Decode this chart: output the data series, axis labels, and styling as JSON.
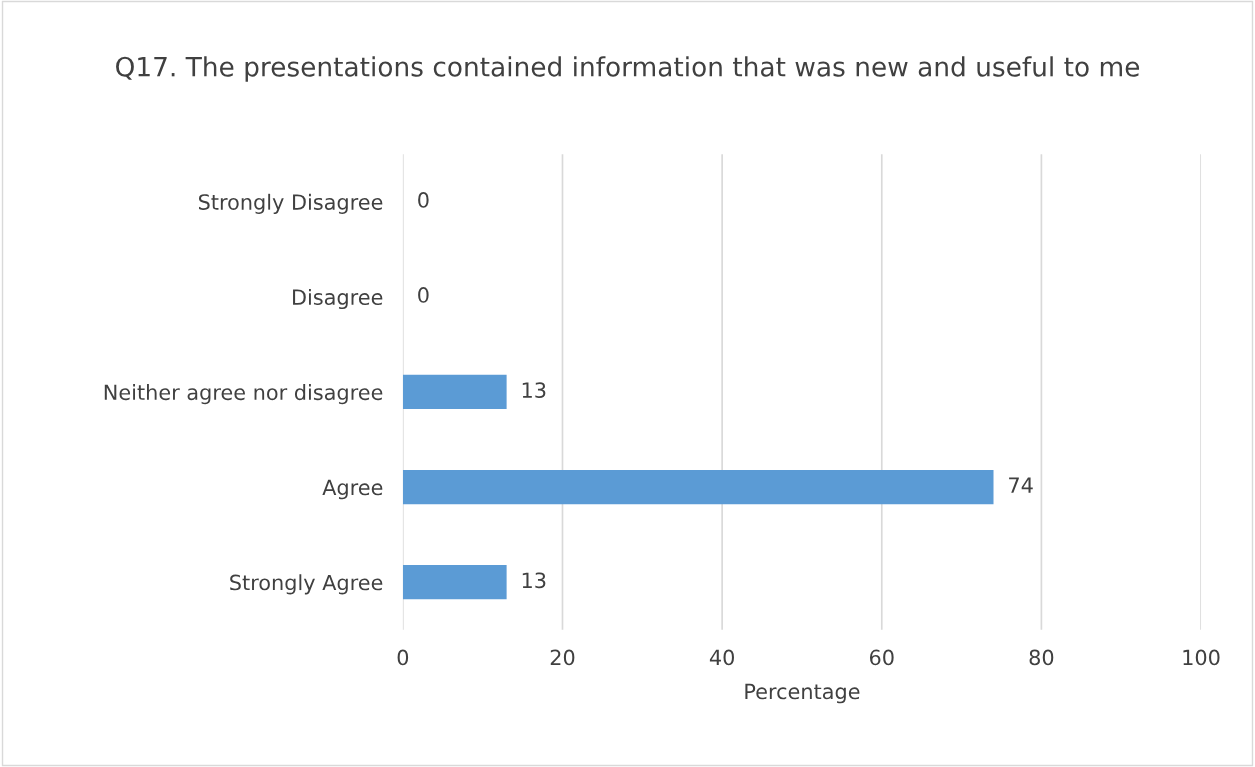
{
  "chart_data": {
    "type": "bar",
    "orientation": "horizontal",
    "title": "Q17. The presentations contained information that was new and useful to me",
    "xlabel": "Percentage",
    "categories": [
      "Strongly Disagree",
      "Disagree",
      "Neither agree nor disagree",
      "Agree",
      "Strongly Agree"
    ],
    "values": [
      0,
      0,
      13,
      74,
      13
    ],
    "color": "#5b9bd5",
    "xlim": [
      0,
      100
    ],
    "xticks": [
      0,
      20,
      40,
      60,
      80,
      100
    ],
    "grid": "x",
    "data_labels": true,
    "legend": false
  }
}
